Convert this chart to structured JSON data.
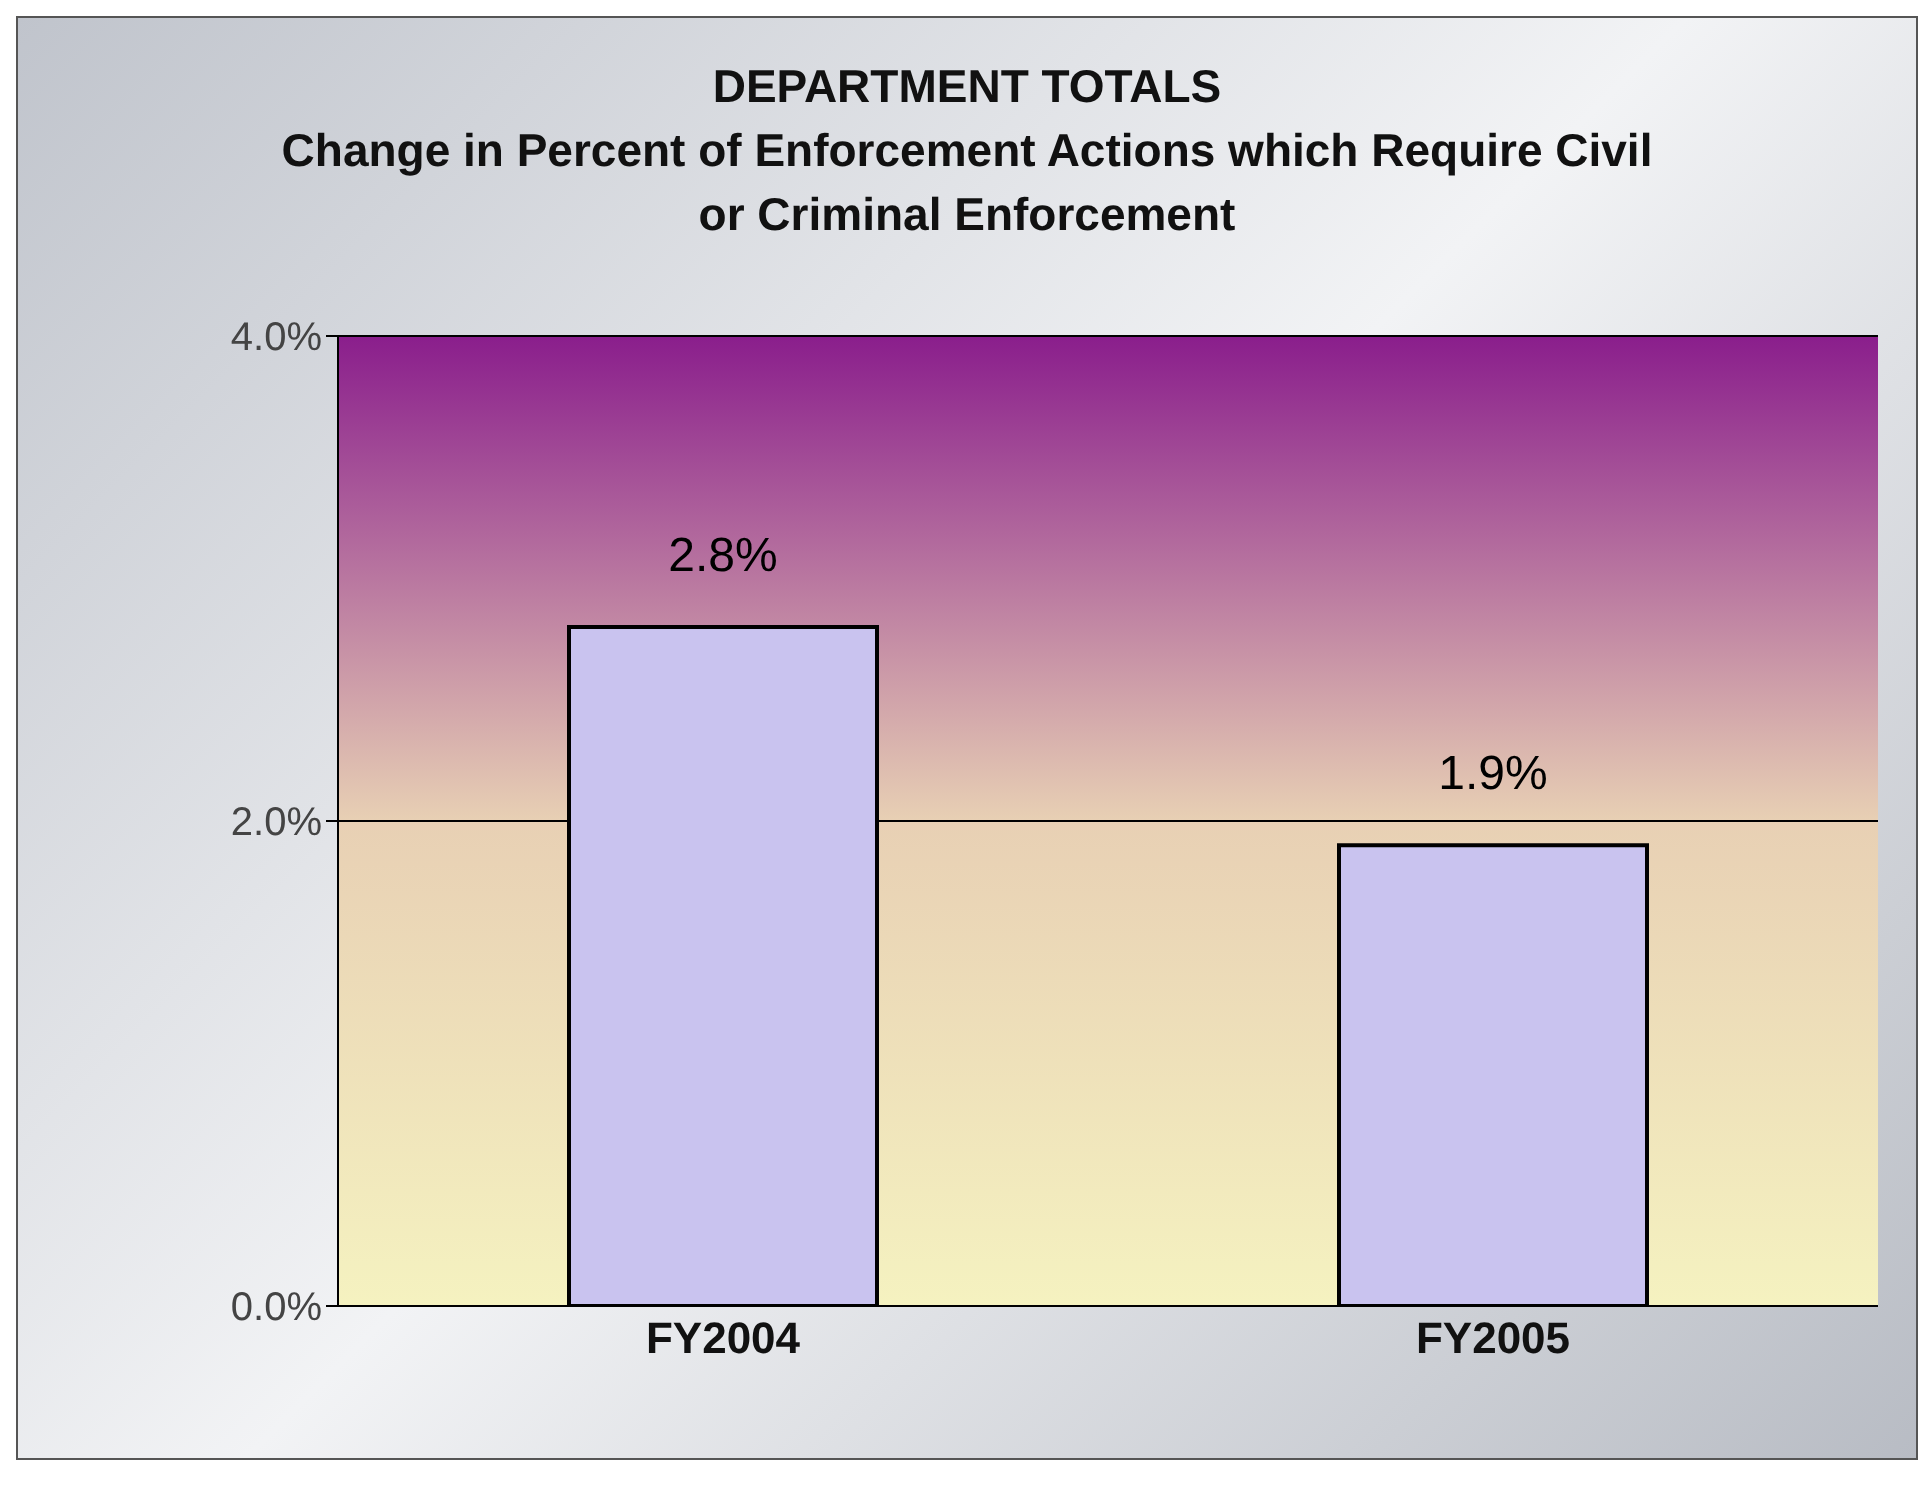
{
  "chart_data": {
    "type": "bar",
    "title": "DEPARTMENT TOTALS",
    "subtitle": "Change in Percent of Enforcement Actions which Require Civil or Criminal Enforcement",
    "categories": [
      "FY2004",
      "FY2005"
    ],
    "values": [
      2.8,
      1.9
    ],
    "color": "#c9c3ef",
    "value_labels": [
      "2.8%",
      "1.9%"
    ],
    "ylim": [
      0,
      4
    ],
    "yticks": [
      {
        "value": 0,
        "label": "0.0%"
      },
      {
        "value": 2,
        "label": "2.0%"
      },
      {
        "value": 4,
        "label": "4.0%"
      }
    ],
    "grid": "y"
  }
}
